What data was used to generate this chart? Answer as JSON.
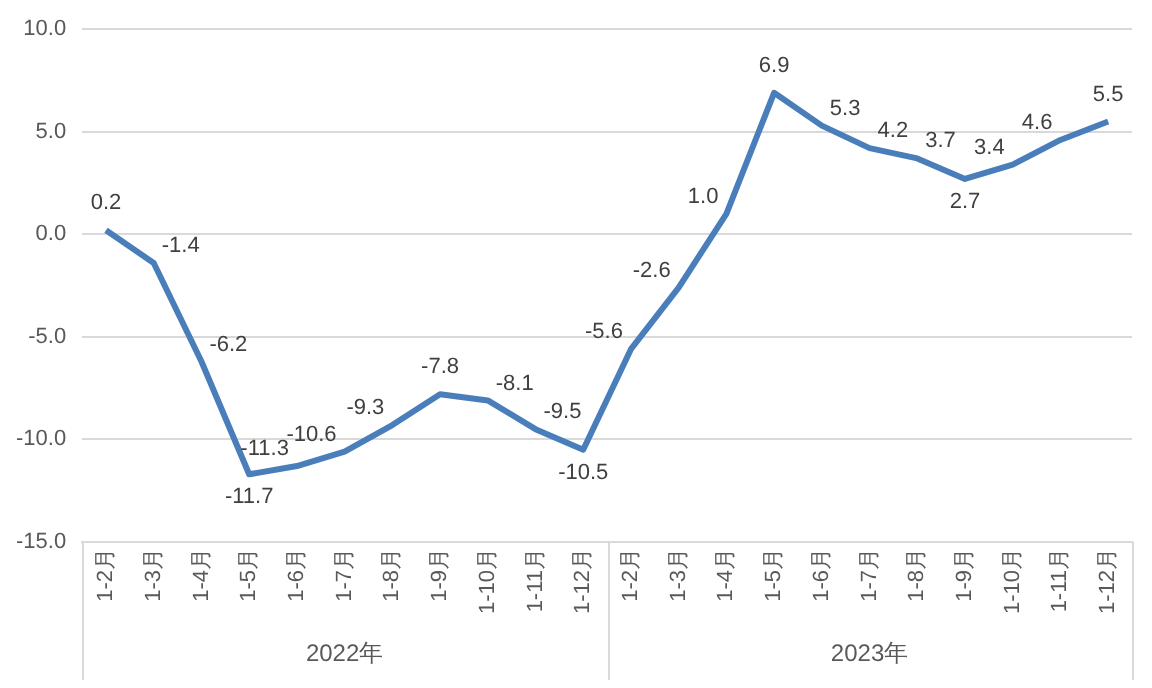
{
  "chart_data": {
    "type": "line",
    "categories": [
      "1-2月",
      "1-3月",
      "1-4月",
      "1-5月",
      "1-6月",
      "1-7月",
      "1-8月",
      "1-9月",
      "1-10月",
      "1-11月",
      "1-12月",
      "1-2月",
      "1-3月",
      "1-4月",
      "1-5月",
      "1-6月",
      "1-7月",
      "1-8月",
      "1-9月",
      "1-10月",
      "1-11月",
      "1-12月"
    ],
    "series": [
      {
        "color": "#4a7ebb",
        "values": [
          0.2,
          -1.4,
          -6.2,
          -11.7,
          -11.3,
          -10.6,
          -9.3,
          -7.8,
          -8.1,
          -9.5,
          -10.5,
          -5.6,
          -2.6,
          1.0,
          6.9,
          5.3,
          4.2,
          3.7,
          2.7,
          3.4,
          4.6,
          5.5
        ],
        "value_labels": [
          "0.2",
          "-1.4",
          "-6.2",
          "-11.7",
          "-11.3",
          "-10.6",
          "-9.3",
          "-7.8",
          "-8.1",
          "-9.5",
          "-10.5",
          "-5.6",
          "-2.6",
          "1.0",
          "6.9",
          "5.3",
          "4.2",
          "3.7",
          "2.7",
          "3.4",
          "4.6",
          "5.5"
        ]
      }
    ],
    "annotations": [
      "2022年",
      "2023年"
    ],
    "ylim": [
      -15,
      10
    ],
    "yticks": [
      {
        "value": -15,
        "label": "-15.0"
      },
      {
        "value": -10,
        "label": "-10.0"
      },
      {
        "value": -5,
        "label": "-5.0"
      },
      {
        "value": 0,
        "label": "0.0"
      },
      {
        "value": 5,
        "label": "5.0"
      },
      {
        "value": 10,
        "label": "10.0"
      }
    ],
    "grid": "y",
    "legend": false,
    "marker": "none",
    "line_style": "solid"
  }
}
